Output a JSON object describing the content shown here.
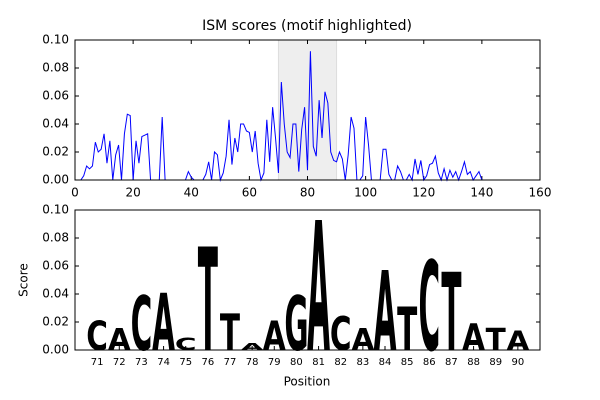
{
  "chart_data": [
    {
      "type": "line",
      "title": "ISM scores (motif highlighted)",
      "x": [
        0,
        1,
        2,
        3,
        4,
        5,
        6,
        7,
        8,
        9,
        10,
        11,
        12,
        13,
        14,
        15,
        16,
        17,
        18,
        19,
        20,
        21,
        22,
        23,
        24,
        25,
        26,
        27,
        28,
        29,
        30,
        31,
        32,
        33,
        34,
        35,
        36,
        37,
        38,
        39,
        40,
        41,
        42,
        43,
        44,
        45,
        46,
        47,
        48,
        49,
        50,
        51,
        52,
        53,
        54,
        55,
        56,
        57,
        58,
        59,
        60,
        61,
        62,
        63,
        64,
        65,
        66,
        67,
        68,
        69,
        70,
        71,
        72,
        73,
        74,
        75,
        76,
        77,
        78,
        79,
        80,
        81,
        82,
        83,
        84,
        85,
        86,
        87,
        88,
        89,
        90,
        91,
        92,
        93,
        94,
        95,
        96,
        97,
        98,
        99,
        100,
        101,
        102,
        103,
        104,
        105,
        106,
        107,
        108,
        109,
        110,
        111,
        112,
        113,
        114,
        115,
        116,
        117,
        118,
        119,
        120,
        121,
        122,
        123,
        124,
        125,
        126,
        127,
        128,
        129,
        130,
        131,
        132,
        133,
        134,
        135,
        136,
        137,
        138,
        139,
        140,
        141,
        142,
        143,
        144,
        145
      ],
      "series": [
        {
          "color": "#0000ff",
          "values": [
            0,
            0,
            0,
            0.003,
            0.01,
            0.008,
            0.01,
            0.027,
            0.02,
            0.022,
            0.033,
            0.012,
            0.028,
            0,
            0.018,
            0.025,
            0,
            0.033,
            0.047,
            0.046,
            0,
            0.028,
            0.012,
            0.031,
            0.032,
            0.033,
            0,
            0,
            0,
            0,
            0.045,
            0,
            0,
            0,
            0,
            0,
            0,
            0,
            0,
            0.006,
            0.002,
            0,
            0,
            0,
            0,
            0.004,
            0.013,
            0,
            0.02,
            0.018,
            0,
            0.005,
            0.017,
            0.043,
            0.011,
            0.03,
            0.02,
            0.04,
            0.04,
            0.035,
            0.034,
            0.02,
            0.035,
            0.012,
            0,
            0.005,
            0.043,
            0.013,
            0.052,
            0.03,
            0.005,
            0.07,
            0.04,
            0.02,
            0.016,
            0.04,
            0.04,
            0.006,
            0.036,
            0.052,
            0.007,
            0.092,
            0.024,
            0.017,
            0.057,
            0.03,
            0.063,
            0.055,
            0.02,
            0.014,
            0.013,
            0.02,
            0.015,
            0,
            0.018,
            0.045,
            0.037,
            0,
            0,
            0.003,
            0.045,
            0.025,
            0,
            0,
            0,
            0,
            0.022,
            0.022,
            0.004,
            0,
            0,
            0.01,
            0.006,
            0,
            0,
            0.004,
            0,
            0.015,
            0.004,
            0.014,
            0,
            0.003,
            0.011,
            0.012,
            0.017,
            0.005,
            0,
            0.008,
            0,
            0.007,
            0.002,
            0.006,
            0,
            0.006,
            0.013,
            0.004,
            0.006,
            0,
            0.003,
            0.006,
            0,
            0,
            0,
            0,
            0,
            0
          ]
        }
      ],
      "highlight": [
        70,
        90
      ],
      "xlim": [
        0,
        160
      ],
      "xticks": [
        0,
        20,
        40,
        60,
        80,
        100,
        120,
        140,
        160
      ],
      "ylim": [
        0,
        0.1
      ],
      "yticks": [
        {
          "value": 0,
          "label": "0.00"
        },
        {
          "value": 0.02,
          "label": "0.02"
        },
        {
          "value": 0.04,
          "label": "0.04"
        },
        {
          "value": 0.06,
          "label": "0.06"
        },
        {
          "value": 0.08,
          "label": "0.08"
        },
        {
          "value": 0.1,
          "label": "0.10"
        }
      ]
    },
    {
      "type": "logo",
      "y_label": "Score",
      "x_label": "Position",
      "categories": [
        71,
        72,
        73,
        74,
        75,
        76,
        77,
        78,
        79,
        80,
        81,
        82,
        83,
        84,
        85,
        86,
        87,
        88,
        89,
        90
      ],
      "letters": [
        "C",
        "A",
        "C",
        "A",
        "C",
        "T",
        "T",
        "A",
        "A",
        "G",
        "A",
        "C",
        "A",
        "A",
        "T",
        "C",
        "T",
        "A",
        "T",
        "A"
      ],
      "values": [
        0.021,
        0.016,
        0.039,
        0.041,
        0.009,
        0.074,
        0.026,
        0.005,
        0.021,
        0.039,
        0.093,
        0.024,
        0.016,
        0.057,
        0.031,
        0.064,
        0.056,
        0.019,
        0.016,
        0.014
      ],
      "colors": {
        "A": "#008000",
        "C": "#0000ff",
        "G": "#ffa500",
        "T": "#ff0000"
      },
      "ylim": [
        0,
        0.1
      ],
      "yticks": [
        {
          "value": 0,
          "label": "0.00"
        },
        {
          "value": 0.02,
          "label": "0.02"
        },
        {
          "value": 0.04,
          "label": "0.04"
        },
        {
          "value": 0.06,
          "label": "0.06"
        },
        {
          "value": 0.08,
          "label": "0.08"
        },
        {
          "value": 0.1,
          "label": "0.10"
        }
      ]
    }
  ]
}
